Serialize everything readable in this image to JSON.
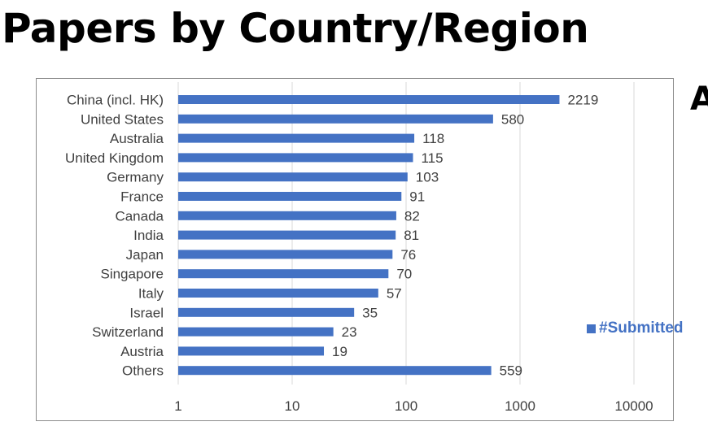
{
  "slide": {
    "title": "Papers by Country/Region",
    "edge_text": "A"
  },
  "colors": {
    "bar": "#4472c4",
    "grid": "#d9d9d9",
    "legend_text": "#4472c4"
  },
  "chart_data": {
    "type": "bar",
    "orientation": "horizontal",
    "x_scale": "log",
    "xlim": [
      1,
      10000
    ],
    "x_ticks": [
      1,
      10,
      100,
      1000,
      10000
    ],
    "grid": true,
    "legend_position": "right",
    "categories": [
      "China (incl. HK)",
      "United States",
      "Australia",
      "United Kingdom",
      "Germany",
      "France",
      "Canada",
      "India",
      "Japan",
      "Singapore",
      "Italy",
      "Israel",
      "Switzerland",
      "Austria",
      "Others"
    ],
    "series": [
      {
        "name": "#Submitted",
        "values": [
          2219,
          580,
          118,
          115,
          103,
          91,
          82,
          81,
          76,
          70,
          57,
          35,
          23,
          19,
          559
        ]
      }
    ]
  }
}
